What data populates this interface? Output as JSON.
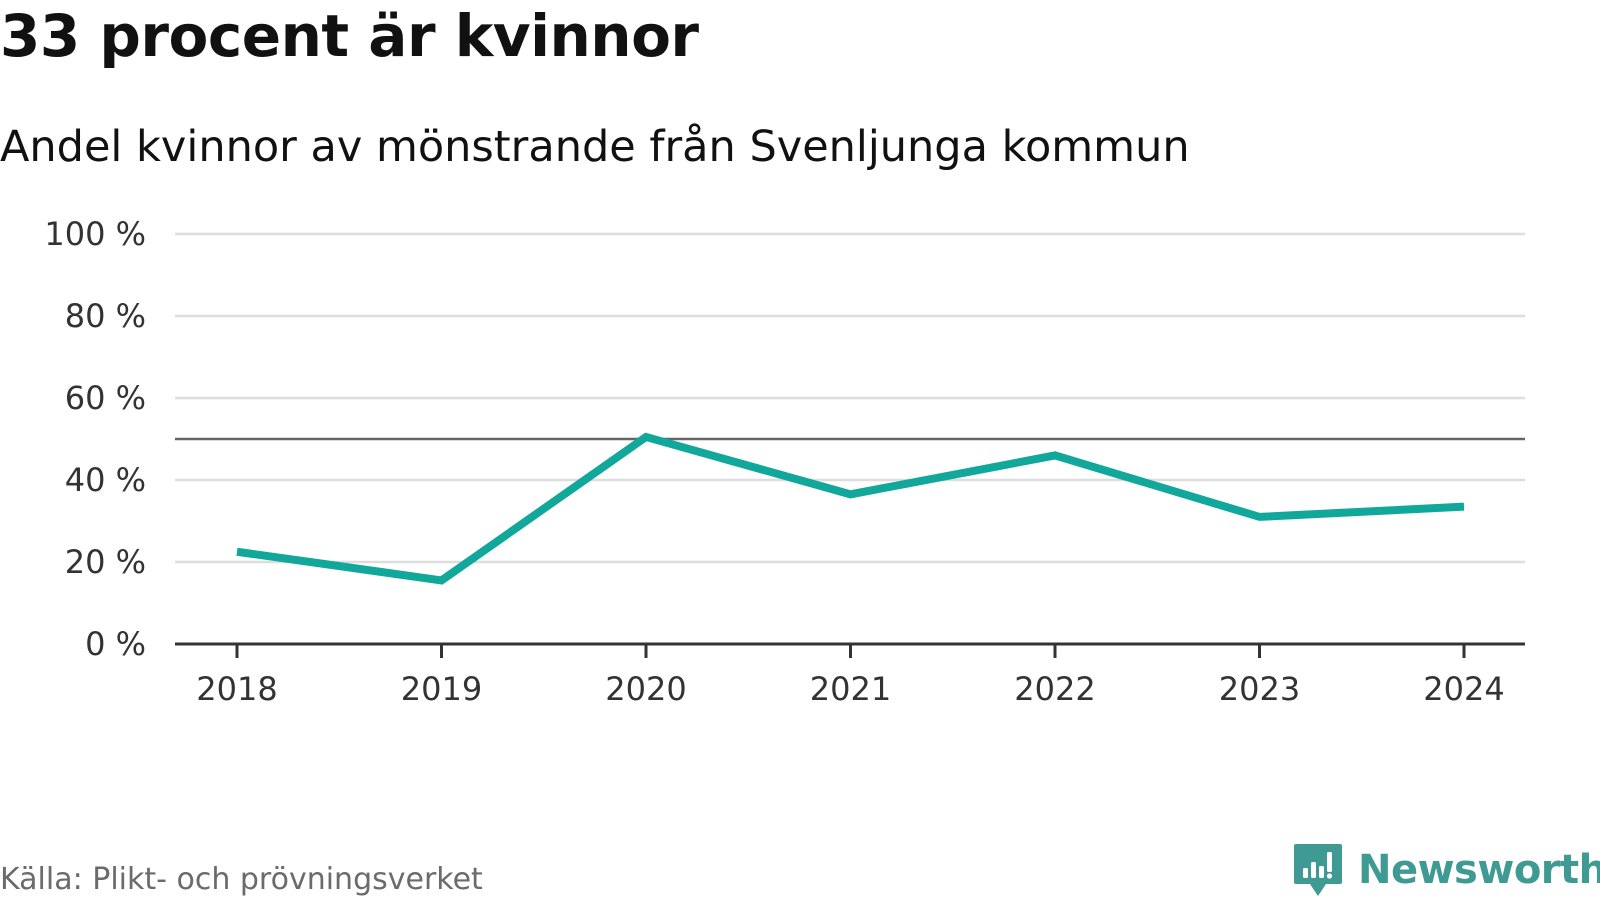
{
  "header": {
    "title": "33 procent är kvinnor",
    "subtitle": "Andel kvinnor av mönstrande från Svenljunga kommun"
  },
  "chart_data": {
    "type": "line",
    "title": "33 procent är kvinnor",
    "subtitle": "Andel kvinnor av mönstrande från Svenljunga kommun",
    "xlabel": "",
    "ylabel": "",
    "categories": [
      "2018",
      "2019",
      "2020",
      "2021",
      "2022",
      "2023",
      "2024"
    ],
    "series": [
      {
        "name": "Andel kvinnor",
        "values": [
          22.5,
          15.5,
          50.5,
          36.5,
          46,
          31,
          33.5
        ],
        "color": "#11a79a"
      }
    ],
    "ylim": [
      0,
      100
    ],
    "yticks": [
      0,
      20,
      40,
      60,
      80,
      100
    ],
    "ytick_labels": [
      "0 %",
      "20 %",
      "40 %",
      "60 %",
      "80 %",
      "100 %"
    ],
    "reference_line": {
      "value": 50,
      "color": "#666666"
    },
    "grid": true,
    "legend": "none"
  },
  "footer": {
    "source": "Källa: Plikt- och prövningsverket",
    "brand": "Newsworthy"
  },
  "colors": {
    "line": "#11a79a",
    "grid": "#dddddd",
    "axis": "#333333",
    "brand": "#3e9a92",
    "source_text": "#6b6b6b"
  }
}
